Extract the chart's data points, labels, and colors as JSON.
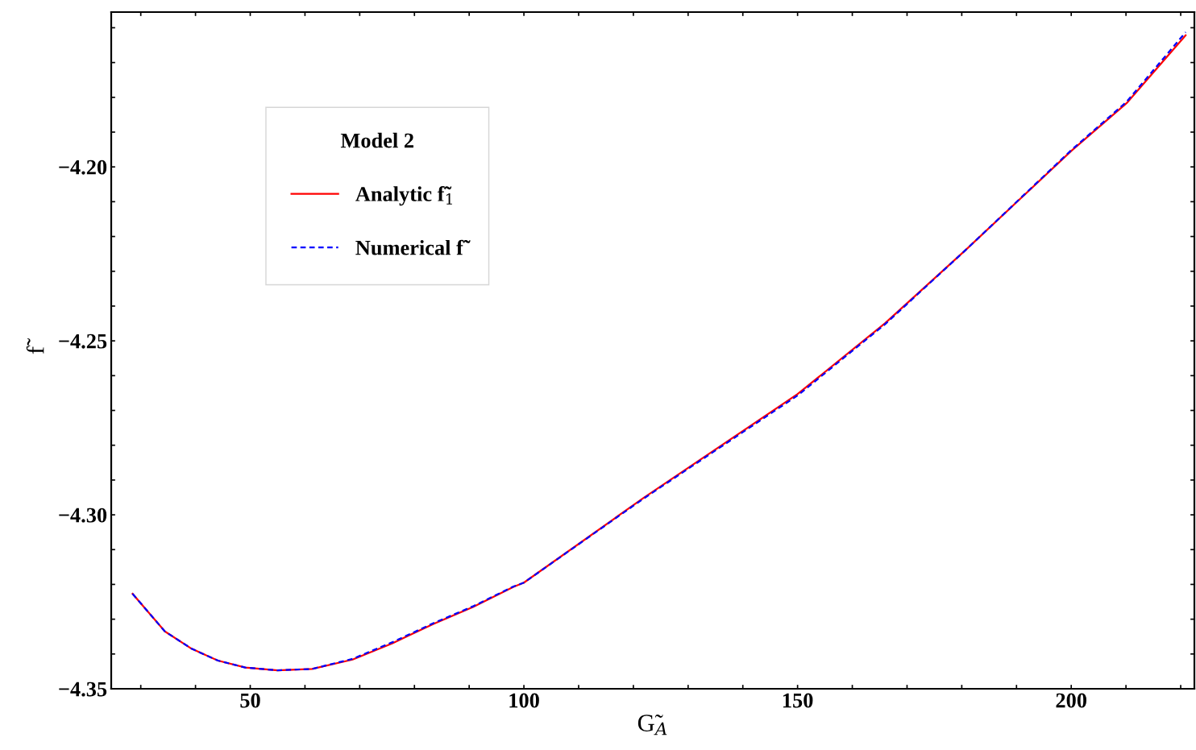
{
  "chart_data": {
    "type": "line",
    "xlabel": "G̃$_{A}$",
    "ylabel": "f̃",
    "legend_title": "Model 2",
    "x": [
      28.5,
      34.4,
      39.3,
      44.1,
      49.1,
      55.0,
      61.3,
      68.7,
      76.0,
      83.4,
      90.7,
      98.1,
      100,
      121.9,
      150,
      166.0,
      180.7,
      200,
      210.1,
      220.9
    ],
    "series": [
      {
        "name": "Analytic f̃$_{1}$",
        "color": "#ff0000",
        "line_style": "solid",
        "values": [
          -4.3227,
          -4.3335,
          -4.3385,
          -4.3419,
          -4.3439,
          -4.3447,
          -4.3443,
          -4.3416,
          -4.3369,
          -4.3314,
          -4.3265,
          -4.3207,
          -4.3195,
          -4.2951,
          -4.2653,
          -4.2449,
          -4.2239,
          -4.1954,
          -4.1817,
          -4.1622
        ]
      },
      {
        "name": "Numerical f̃",
        "color": "#0000ff",
        "line_style": "dashed",
        "values": [
          -4.3227,
          -4.3335,
          -4.3385,
          -4.3419,
          -4.3439,
          -4.3447,
          -4.3443,
          -4.3414,
          -4.3366,
          -4.3312,
          -4.3263,
          -4.3206,
          -4.3195,
          -4.2953,
          -4.2657,
          -4.2452,
          -4.2239,
          -4.1952,
          -4.1813,
          -4.1613
        ]
      }
    ],
    "xlim": [
      24.6,
      222.5
    ],
    "ylim": [
      -4.35,
      -4.1555
    ],
    "xticks": [
      {
        "value": 30,
        "label": null
      },
      {
        "value": 40,
        "label": null
      },
      50,
      {
        "value": 60,
        "label": null
      },
      {
        "value": 70,
        "label": null
      },
      {
        "value": 80,
        "label": null
      },
      {
        "value": 90,
        "label": null
      },
      100,
      {
        "value": 110,
        "label": null
      },
      {
        "value": 120,
        "label": null
      },
      {
        "value": 130,
        "label": null
      },
      {
        "value": 140,
        "label": null
      },
      150,
      {
        "value": 160,
        "label": null
      },
      {
        "value": 170,
        "label": null
      },
      {
        "value": 180,
        "label": null
      },
      {
        "value": 190,
        "label": null
      },
      200,
      {
        "value": 210,
        "label": null
      },
      {
        "value": 220,
        "label": null
      }
    ],
    "yticks": [
      {
        "value": -4.34,
        "label": null
      },
      {
        "value": -4.33,
        "label": null
      },
      {
        "value": -4.32,
        "label": null
      },
      {
        "value": -4.31,
        "label": null
      },
      {
        "value": -4.3,
        "label": "−4.30"
      },
      {
        "value": -4.29,
        "label": null
      },
      {
        "value": -4.28,
        "label": null
      },
      {
        "value": -4.27,
        "label": null
      },
      {
        "value": -4.26,
        "label": null
      },
      {
        "value": -4.25,
        "label": "−4.25"
      },
      {
        "value": -4.24,
        "label": null
      },
      {
        "value": -4.23,
        "label": null
      },
      {
        "value": -4.22,
        "label": null
      },
      {
        "value": -4.21,
        "label": null
      },
      {
        "value": -4.2,
        "label": "−4.20"
      },
      {
        "value": -4.19,
        "label": null
      },
      {
        "value": -4.18,
        "label": null
      },
      {
        "value": -4.17,
        "label": null
      },
      {
        "value": -4.16,
        "label": null
      },
      {
        "value": -4.35,
        "label": "−4.35"
      }
    ],
    "legend": "top left",
    "grid": false,
    "marker": "none"
  }
}
